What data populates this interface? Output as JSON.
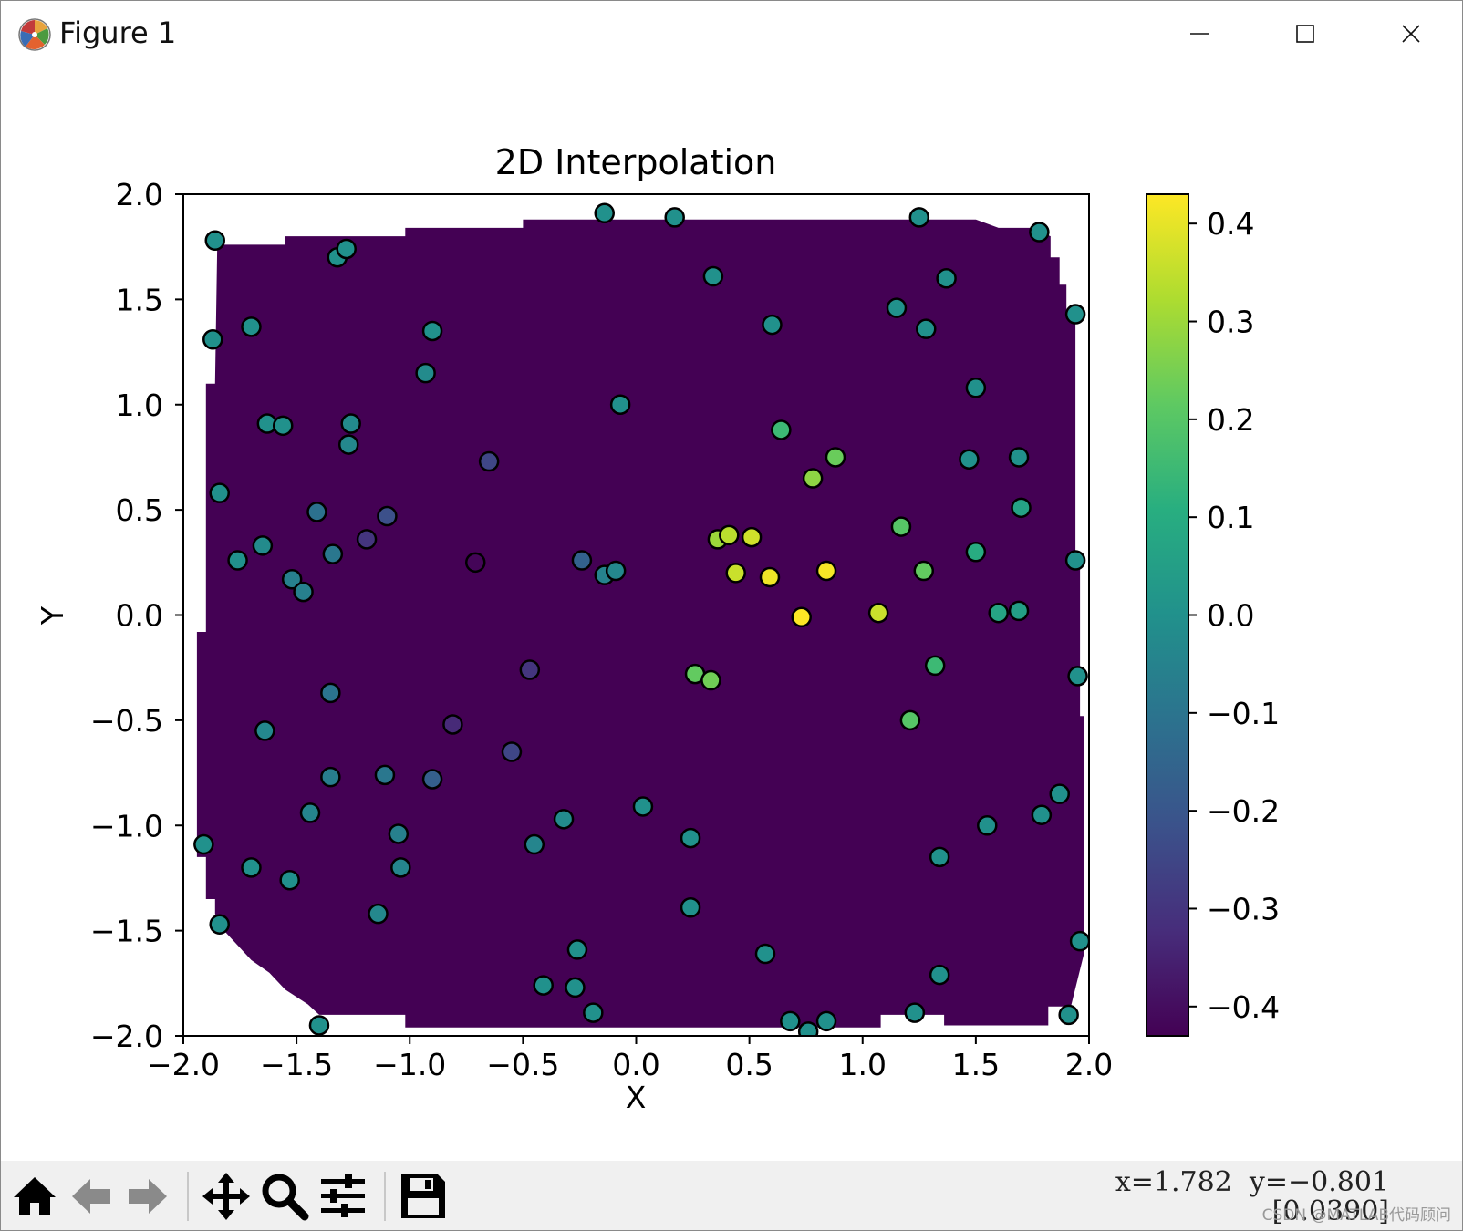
{
  "window": {
    "title": "Figure 1"
  },
  "toolbar": {
    "buttons": [
      {
        "name": "home-button",
        "icon": "home-icon"
      },
      {
        "name": "back-button",
        "icon": "arrow-left-icon"
      },
      {
        "name": "forward-button",
        "icon": "arrow-right-icon"
      },
      {
        "name": "pan-button",
        "icon": "move-icon"
      },
      {
        "name": "zoom-button",
        "icon": "magnifier-icon"
      },
      {
        "name": "configure-subplots-button",
        "icon": "sliders-icon"
      },
      {
        "name": "save-button",
        "icon": "floppy-disk-icon"
      }
    ],
    "coords": "x=1.782  y=−0.801",
    "pixel_value": "[0.0390]",
    "watermark": "CSDN @MATLAB代码顾问"
  },
  "chart_data": {
    "type": "scatter",
    "title": "2D Interpolation",
    "xlabel": "X",
    "ylabel": "Y",
    "xlim": [
      -2.0,
      2.0
    ],
    "ylim": [
      -2.0,
      2.0
    ],
    "xticks": [
      "−2.0",
      "−1.5",
      "−1.0",
      "−0.5",
      "0.0",
      "0.5",
      "1.0",
      "1.5",
      "2.0"
    ],
    "yticks": [
      "−2.0",
      "−1.5",
      "−1.0",
      "−0.5",
      "0.0",
      "0.5",
      "1.0",
      "1.5",
      "2.0"
    ],
    "grid": false,
    "colormap": "viridis",
    "background_fill_color": "#440154",
    "colorbar": {
      "min": -0.43,
      "max": 0.43,
      "ticks": [
        "0.4",
        "0.3",
        "0.2",
        "0.1",
        "0.0",
        "−0.1",
        "−0.2",
        "−0.3",
        "−0.4"
      ],
      "tick_values": [
        0.4,
        0.3,
        0.2,
        0.1,
        0.0,
        -0.1,
        -0.2,
        -0.3,
        -0.4
      ]
    },
    "hull": [
      [
        -1.85,
        1.76
      ],
      [
        -1.55,
        1.76
      ],
      [
        -1.55,
        1.8
      ],
      [
        -1.02,
        1.8
      ],
      [
        -1.02,
        1.84
      ],
      [
        -0.5,
        1.84
      ],
      [
        -0.5,
        1.88
      ],
      [
        1.5,
        1.88
      ],
      [
        1.6,
        1.84
      ],
      [
        1.75,
        1.84
      ],
      [
        1.83,
        1.8
      ],
      [
        1.83,
        1.7
      ],
      [
        1.87,
        1.7
      ],
      [
        1.87,
        1.57
      ],
      [
        1.9,
        1.57
      ],
      [
        1.9,
        1.42
      ],
      [
        1.94,
        1.42
      ],
      [
        1.94,
        0.26
      ],
      [
        1.96,
        0.26
      ],
      [
        1.96,
        -0.48
      ],
      [
        1.98,
        -0.48
      ],
      [
        1.98,
        -1.6
      ],
      [
        1.92,
        -1.86
      ],
      [
        1.82,
        -1.86
      ],
      [
        1.82,
        -1.95
      ],
      [
        1.36,
        -1.95
      ],
      [
        1.36,
        -1.9
      ],
      [
        1.08,
        -1.9
      ],
      [
        1.08,
        -1.96
      ],
      [
        -1.02,
        -1.96
      ],
      [
        -1.02,
        -1.9
      ],
      [
        -1.4,
        -1.9
      ],
      [
        -1.45,
        -1.85
      ],
      [
        -1.55,
        -1.78
      ],
      [
        -1.62,
        -1.7
      ],
      [
        -1.7,
        -1.64
      ],
      [
        -1.76,
        -1.57
      ],
      [
        -1.82,
        -1.5
      ],
      [
        -1.86,
        -1.42
      ],
      [
        -1.86,
        -1.35
      ],
      [
        -1.9,
        -1.35
      ],
      [
        -1.9,
        -1.15
      ],
      [
        -1.94,
        -1.15
      ],
      [
        -1.94,
        -0.08
      ],
      [
        -1.9,
        -0.08
      ],
      [
        -1.9,
        1.1
      ],
      [
        -1.86,
        1.1
      ]
    ],
    "points": [
      {
        "x": -1.86,
        "y": 1.78,
        "v": 0.0
      },
      {
        "x": -1.32,
        "y": 1.7,
        "v": 0.0
      },
      {
        "x": -1.28,
        "y": 1.74,
        "v": 0.0
      },
      {
        "x": -0.14,
        "y": 1.91,
        "v": 0.0
      },
      {
        "x": 0.17,
        "y": 1.89,
        "v": 0.0
      },
      {
        "x": 1.25,
        "y": 1.89,
        "v": 0.0
      },
      {
        "x": 1.78,
        "y": 1.82,
        "v": 0.0
      },
      {
        "x": 0.34,
        "y": 1.61,
        "v": 0.0
      },
      {
        "x": 1.37,
        "y": 1.6,
        "v": 0.0
      },
      {
        "x": 1.15,
        "y": 1.46,
        "v": 0.0
      },
      {
        "x": 1.94,
        "y": 1.43,
        "v": 0.0
      },
      {
        "x": -1.87,
        "y": 1.31,
        "v": 0.0
      },
      {
        "x": -1.7,
        "y": 1.37,
        "v": 0.0
      },
      {
        "x": -0.9,
        "y": 1.35,
        "v": 0.0
      },
      {
        "x": 0.6,
        "y": 1.38,
        "v": 0.0
      },
      {
        "x": 1.28,
        "y": 1.36,
        "v": 0.0
      },
      {
        "x": -0.93,
        "y": 1.15,
        "v": -0.02
      },
      {
        "x": -0.07,
        "y": 1.0,
        "v": 0.0
      },
      {
        "x": 1.5,
        "y": 1.08,
        "v": 0.0
      },
      {
        "x": -1.63,
        "y": 0.91,
        "v": 0.0
      },
      {
        "x": -1.56,
        "y": 0.9,
        "v": 0.0
      },
      {
        "x": -1.26,
        "y": 0.91,
        "v": -0.02
      },
      {
        "x": -1.27,
        "y": 0.81,
        "v": -0.03
      },
      {
        "x": 0.64,
        "y": 0.88,
        "v": 0.15
      },
      {
        "x": 0.88,
        "y": 0.75,
        "v": 0.23
      },
      {
        "x": 0.78,
        "y": 0.65,
        "v": 0.28
      },
      {
        "x": 1.47,
        "y": 0.74,
        "v": 0.0
      },
      {
        "x": 1.69,
        "y": 0.75,
        "v": 0.0
      },
      {
        "x": -0.65,
        "y": 0.73,
        "v": -0.25
      },
      {
        "x": -1.84,
        "y": 0.58,
        "v": 0.0
      },
      {
        "x": -1.41,
        "y": 0.49,
        "v": -0.11
      },
      {
        "x": -1.1,
        "y": 0.47,
        "v": -0.22
      },
      {
        "x": -1.19,
        "y": 0.36,
        "v": -0.3
      },
      {
        "x": -1.34,
        "y": 0.29,
        "v": -0.09
      },
      {
        "x": -1.65,
        "y": 0.33,
        "v": -0.02
      },
      {
        "x": -1.76,
        "y": 0.26,
        "v": 0.0
      },
      {
        "x": -1.52,
        "y": 0.17,
        "v": -0.06
      },
      {
        "x": -1.47,
        "y": 0.11,
        "v": -0.06
      },
      {
        "x": -0.71,
        "y": 0.25,
        "v": -0.42
      },
      {
        "x": -0.24,
        "y": 0.26,
        "v": -0.16
      },
      {
        "x": -0.14,
        "y": 0.19,
        "v": -0.05
      },
      {
        "x": -0.09,
        "y": 0.21,
        "v": -0.03
      },
      {
        "x": 0.36,
        "y": 0.36,
        "v": 0.3
      },
      {
        "x": 0.41,
        "y": 0.38,
        "v": 0.34
      },
      {
        "x": 0.51,
        "y": 0.37,
        "v": 0.37
      },
      {
        "x": 0.44,
        "y": 0.2,
        "v": 0.36
      },
      {
        "x": 0.59,
        "y": 0.18,
        "v": 0.41
      },
      {
        "x": 0.84,
        "y": 0.21,
        "v": 0.42
      },
      {
        "x": 0.73,
        "y": -0.01,
        "v": 0.43
      },
      {
        "x": 1.07,
        "y": 0.01,
        "v": 0.36
      },
      {
        "x": 1.17,
        "y": 0.42,
        "v": 0.2
      },
      {
        "x": 1.27,
        "y": 0.21,
        "v": 0.22
      },
      {
        "x": 1.5,
        "y": 0.3,
        "v": 0.1
      },
      {
        "x": 1.7,
        "y": 0.51,
        "v": 0.06
      },
      {
        "x": 1.6,
        "y": 0.01,
        "v": 0.07
      },
      {
        "x": 1.69,
        "y": 0.02,
        "v": 0.05
      },
      {
        "x": 1.94,
        "y": 0.26,
        "v": 0.0
      },
      {
        "x": 1.32,
        "y": -0.24,
        "v": 0.15
      },
      {
        "x": 1.21,
        "y": -0.5,
        "v": 0.2
      },
      {
        "x": 0.26,
        "y": -0.28,
        "v": 0.22
      },
      {
        "x": 0.33,
        "y": -0.31,
        "v": 0.24
      },
      {
        "x": 1.95,
        "y": -0.29,
        "v": 0.0
      },
      {
        "x": -0.47,
        "y": -0.26,
        "v": -0.3
      },
      {
        "x": -1.35,
        "y": -0.37,
        "v": -0.1
      },
      {
        "x": -1.64,
        "y": -0.55,
        "v": -0.03
      },
      {
        "x": -0.81,
        "y": -0.52,
        "v": -0.33
      },
      {
        "x": -0.55,
        "y": -0.65,
        "v": -0.25
      },
      {
        "x": -1.35,
        "y": -0.77,
        "v": -0.07
      },
      {
        "x": -1.11,
        "y": -0.76,
        "v": -0.09
      },
      {
        "x": -0.9,
        "y": -0.78,
        "v": -0.17
      },
      {
        "x": 0.03,
        "y": -0.91,
        "v": 0.0
      },
      {
        "x": 1.87,
        "y": -0.85,
        "v": 0.0
      },
      {
        "x": 1.79,
        "y": -0.95,
        "v": 0.0
      },
      {
        "x": 1.55,
        "y": -1.0,
        "v": 0.0
      },
      {
        "x": -1.44,
        "y": -0.94,
        "v": -0.04
      },
      {
        "x": -1.05,
        "y": -1.04,
        "v": -0.06
      },
      {
        "x": -0.32,
        "y": -0.97,
        "v": -0.02
      },
      {
        "x": -0.45,
        "y": -1.09,
        "v": -0.04
      },
      {
        "x": 0.24,
        "y": -1.06,
        "v": 0.0
      },
      {
        "x": -1.91,
        "y": -1.09,
        "v": 0.0
      },
      {
        "x": -1.7,
        "y": -1.2,
        "v": 0.0
      },
      {
        "x": -1.53,
        "y": -1.26,
        "v": 0.0
      },
      {
        "x": -1.04,
        "y": -1.2,
        "v": -0.04
      },
      {
        "x": 1.34,
        "y": -1.15,
        "v": 0.0
      },
      {
        "x": -1.84,
        "y": -1.47,
        "v": 0.0
      },
      {
        "x": -1.14,
        "y": -1.42,
        "v": -0.03
      },
      {
        "x": 0.24,
        "y": -1.39,
        "v": 0.0
      },
      {
        "x": -0.26,
        "y": -1.59,
        "v": 0.0
      },
      {
        "x": 0.57,
        "y": -1.61,
        "v": 0.0
      },
      {
        "x": 1.96,
        "y": -1.55,
        "v": 0.0
      },
      {
        "x": -0.41,
        "y": -1.76,
        "v": 0.0
      },
      {
        "x": -0.27,
        "y": -1.77,
        "v": 0.0
      },
      {
        "x": 1.34,
        "y": -1.71,
        "v": 0.0
      },
      {
        "x": -0.19,
        "y": -1.89,
        "v": 0.0
      },
      {
        "x": 0.68,
        "y": -1.93,
        "v": 0.0
      },
      {
        "x": 0.84,
        "y": -1.93,
        "v": 0.0
      },
      {
        "x": 1.23,
        "y": -1.89,
        "v": 0.0
      },
      {
        "x": 1.91,
        "y": -1.9,
        "v": 0.0
      },
      {
        "x": 0.76,
        "y": -1.98,
        "v": 0.0
      },
      {
        "x": -1.4,
        "y": -1.95,
        "v": 0.0
      }
    ]
  }
}
